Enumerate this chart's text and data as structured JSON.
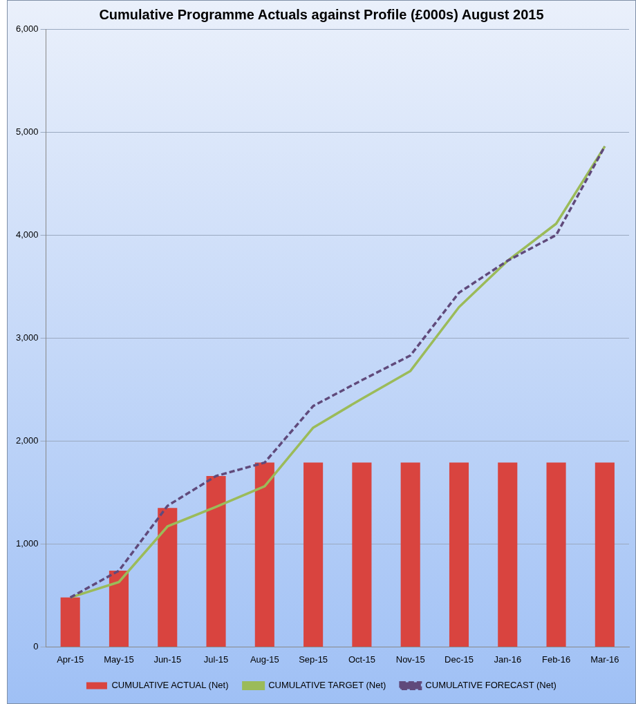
{
  "chart_data": {
    "type": "bar",
    "title": "Cumulative Programme Actuals against Profile (£000s) August 2015",
    "categories": [
      "Apr-15",
      "May-15",
      "Jun-15",
      "Jul-15",
      "Aug-15",
      "Sep-15",
      "Oct-15",
      "Nov-15",
      "Dec-15",
      "Jan-16",
      "Feb-16",
      "Mar-16"
    ],
    "series": [
      {
        "name": "CUMULATIVE ACTUAL (Net)",
        "color": "#d9443f",
        "values": [
          480,
          740,
          1350,
          1660,
          1790,
          1790,
          1790,
          1790,
          1790,
          1790,
          1790,
          1790
        ]
      },
      {
        "name": "CUMULATIVE TARGET (Net)",
        "type": "line",
        "color": "#9bbb59",
        "line_style": "solid",
        "values": [
          480,
          630,
          1170,
          1360,
          1560,
          2130,
          2410,
          2680,
          3300,
          3750,
          4110,
          4860
        ]
      },
      {
        "name": "CUMULATIVE FORECAST (Net)",
        "type": "line",
        "color": "#604a7b",
        "line_style": "dashed",
        "values": [
          480,
          740,
          1370,
          1660,
          1790,
          2340,
          2590,
          2830,
          3440,
          3750,
          4000,
          4860
        ]
      }
    ],
    "ylim": [
      0,
      6000
    ],
    "yticks": [
      0,
      {
        "value": 1000,
        "label": "1,000"
      },
      {
        "value": 2000,
        "label": "2,000"
      },
      {
        "value": 3000,
        "label": "3,000"
      },
      {
        "value": 4000,
        "label": "4,000"
      },
      {
        "value": 5000,
        "label": "5,000"
      },
      {
        "value": 6000,
        "label": "6,000"
      }
    ],
    "grid": "y",
    "legend": "bottom",
    "marker": "none"
  }
}
